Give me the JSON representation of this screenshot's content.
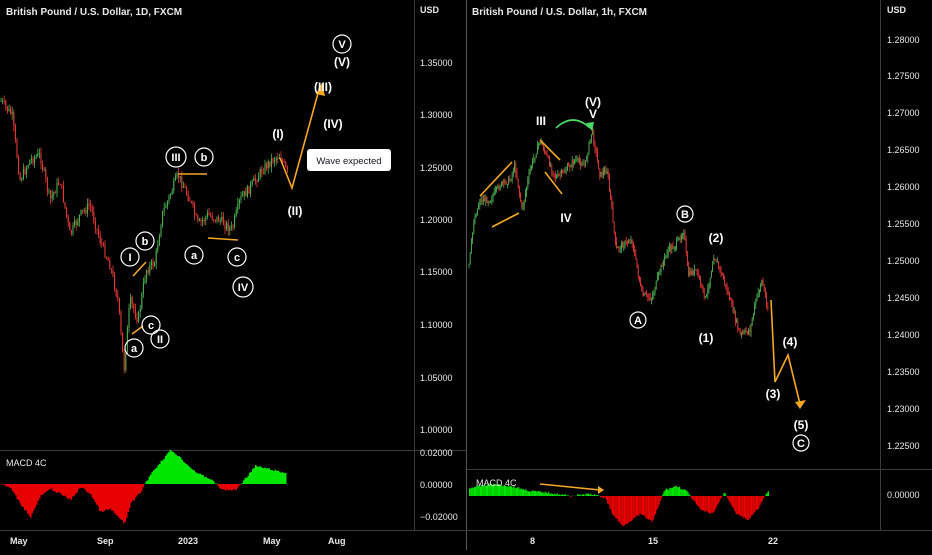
{
  "left_panel": {
    "title": "British Pound / U.S. Dollar, 1D, FXCM",
    "currency": "USD",
    "price_ticks": [
      "1.35000",
      "1.30000",
      "1.25000",
      "1.20000",
      "1.15000",
      "1.10000",
      "1.05000",
      "1.00000"
    ],
    "macd_label": "MACD 4C",
    "macd_ticks": [
      "0.02000",
      "0.00000",
      "−0.02000"
    ],
    "x_ticks": [
      "May",
      "Sep",
      "2023",
      "May",
      "Aug"
    ],
    "wave_labels": {
      "w1": "I",
      "w2": "II",
      "w3": "III",
      "w4": "IV",
      "w5": "V",
      "a1": "a",
      "b1": "b",
      "c1": "c",
      "a2": "a",
      "b2": "b",
      "c2": "c",
      "p1": "(I)",
      "p2": "(II)",
      "p3": "(III)",
      "p4": "(IV)",
      "p5": "(V)"
    },
    "annotation": "Wave expected"
  },
  "right_panel": {
    "title": "British Pound / U.S. Dollar, 1h, FXCM",
    "currency": "USD",
    "price_ticks": [
      "1.28000",
      "1.27500",
      "1.27000",
      "1.26500",
      "1.26000",
      "1.25500",
      "1.25000",
      "1.24500",
      "1.24000",
      "1.23500",
      "1.23000",
      "1.22500"
    ],
    "macd_label": "MACD 4C",
    "macd_ticks": [
      "0.00000"
    ],
    "x_ticks": [
      "8",
      "15",
      "22"
    ],
    "wave_labels": {
      "w3": "III",
      "w4": "IV",
      "w5": "V",
      "pw5": "(V)",
      "A": "A",
      "B": "B",
      "C": "C",
      "s1": "(1)",
      "s2": "(2)",
      "s3": "(3)",
      "s4": "(4)",
      "s5": "(5)"
    }
  },
  "colors": {
    "bull": "#4caf50",
    "bear": "#e53935",
    "wave": "#f5a623",
    "arrow": "#4cd964",
    "macd_up": "#00e600",
    "macd_dn": "#e60000"
  },
  "chart_data": [
    {
      "type": "candlestick",
      "title": "British Pound / U.S. Dollar, 1D, FXCM",
      "ylabel": "USD",
      "ylim": [
        0.97,
        1.4
      ],
      "x_ticks": [
        "May",
        "Sep",
        "2023",
        "May",
        "Aug"
      ],
      "x": [
        "2022-03",
        "2022-04",
        "2022-05",
        "2022-06",
        "2022-07",
        "2022-08",
        "2022-09",
        "2022-10",
        "2022-11",
        "2022-12",
        "2023-01",
        "2023-02",
        "2023-03",
        "2023-04",
        "2023-05"
      ],
      "close": [
        1.315,
        1.255,
        1.245,
        1.215,
        1.2,
        1.165,
        1.1,
        1.145,
        1.205,
        1.21,
        1.235,
        1.205,
        1.22,
        1.245,
        1.255
      ],
      "projection": [
        {
          "x": "2023-05",
          "y": 1.265
        },
        {
          "x": "2023-06",
          "y": 1.23
        },
        {
          "x": "2023-07",
          "y": 1.325
        }
      ],
      "macd": {
        "label": "MACD 4C",
        "ylim": [
          -0.03,
          0.03
        ]
      }
    },
    {
      "type": "candlestick",
      "title": "British Pound / U.S. Dollar, 1h, FXCM",
      "ylabel": "USD",
      "ylim": [
        1.2225,
        1.2825
      ],
      "x_ticks": [
        "8",
        "15",
        "22"
      ],
      "x": [
        3,
        4,
        5,
        6,
        7,
        8,
        9,
        10,
        11,
        12,
        13,
        14,
        15,
        16,
        17,
        18,
        19,
        20,
        21
      ],
      "close": [
        1.255,
        1.259,
        1.262,
        1.264,
        1.262,
        1.267,
        1.261,
        1.263,
        1.265,
        1.262,
        1.251,
        1.244,
        1.253,
        1.253,
        1.254,
        1.244,
        1.247,
        1.24,
        1.245
      ],
      "projection": [
        {
          "x": 21,
          "y": 1.2465
        },
        {
          "x": 22,
          "y": 1.2335
        },
        {
          "x": 23,
          "y": 1.238
        },
        {
          "x": 24,
          "y": 1.23
        }
      ],
      "macd": {
        "label": "MACD 4C",
        "ylim": [
          -0.004,
          0.004
        ]
      }
    }
  ]
}
